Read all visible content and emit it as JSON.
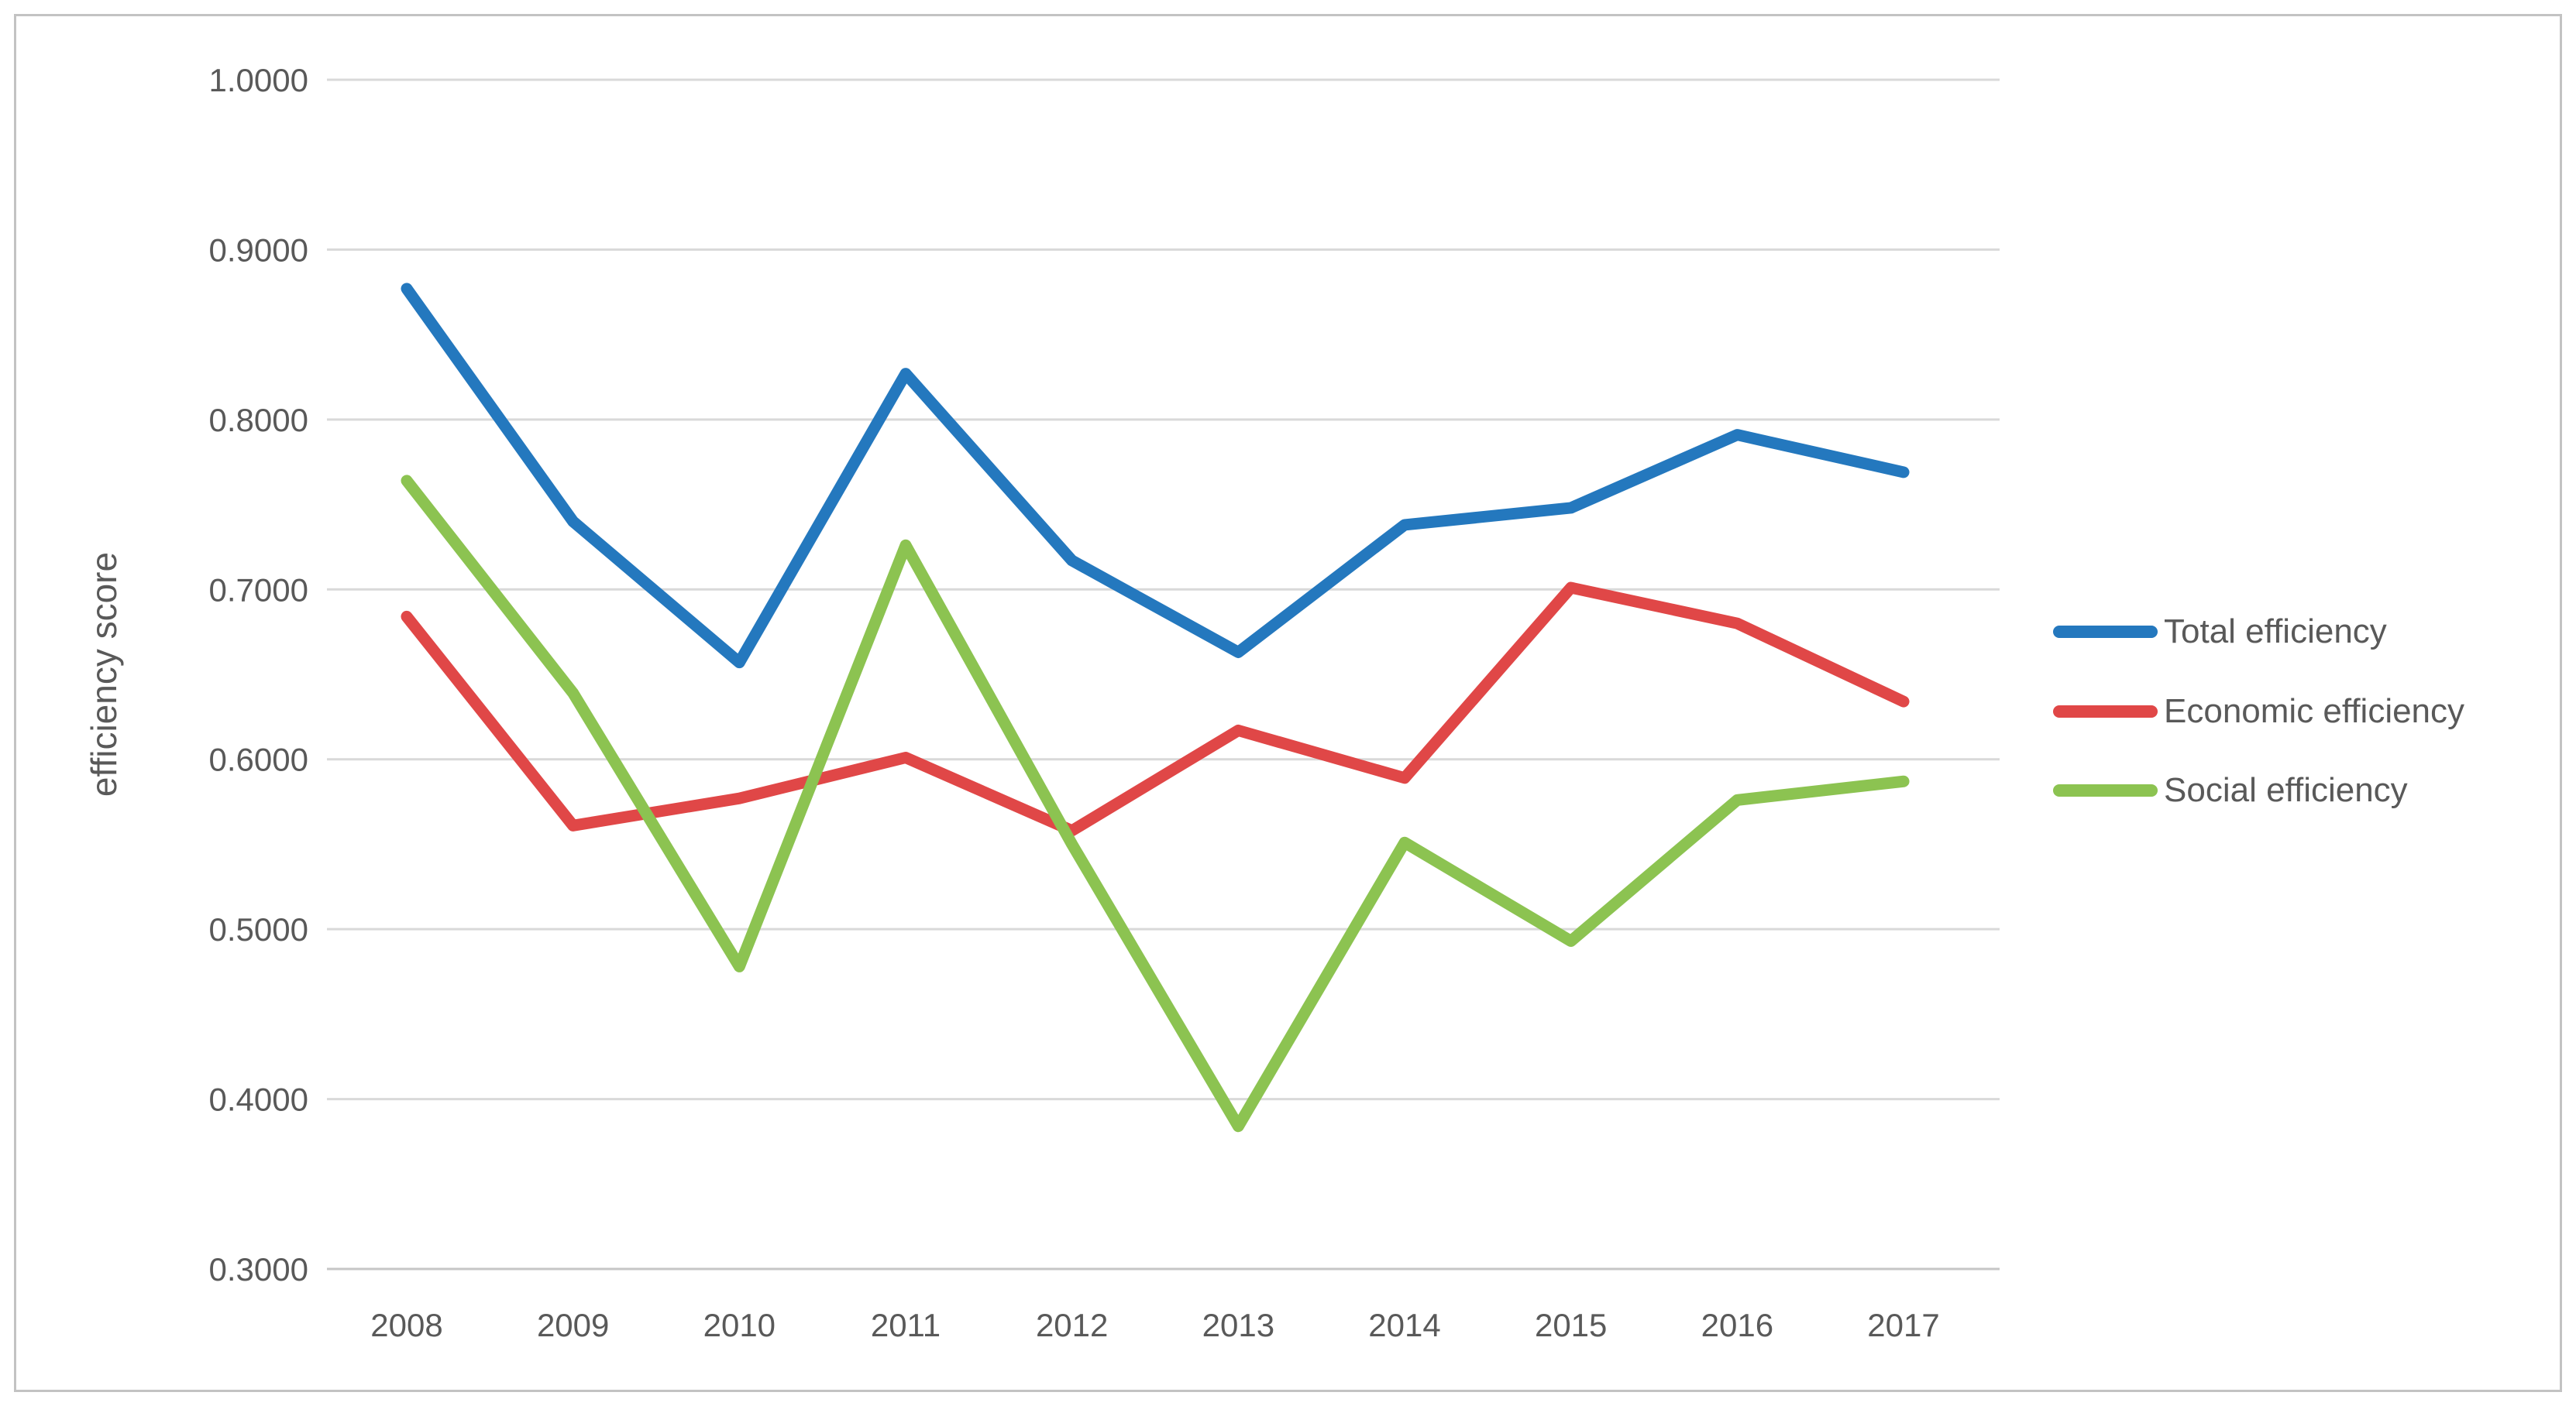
{
  "chart_data": {
    "type": "line",
    "title": "",
    "xlabel": "",
    "ylabel": "efficiency score",
    "categories": [
      "2008",
      "2009",
      "2010",
      "2011",
      "2012",
      "2013",
      "2014",
      "2015",
      "2016",
      "2017"
    ],
    "series": [
      {
        "name": "Total efficiency",
        "color": "#2478be",
        "values": [
          0.877,
          0.74,
          0.657,
          0.827,
          0.717,
          0.663,
          0.738,
          0.748,
          0.791,
          0.769
        ]
      },
      {
        "name": "Economic efficiency",
        "color": "#e04747",
        "values": [
          0.684,
          0.561,
          0.577,
          0.601,
          0.558,
          0.617,
          0.589,
          0.701,
          0.68,
          0.634
        ]
      },
      {
        "name": "Social efficiency",
        "color": "#8cc351",
        "values": [
          0.764,
          0.639,
          0.478,
          0.726,
          0.55,
          0.384,
          0.551,
          0.493,
          0.576,
          0.587
        ]
      }
    ],
    "ylim": [
      0.3,
      1.0
    ],
    "y_step": 0.1,
    "y_tick_labels": [
      "0.3000",
      "0.4000",
      "0.5000",
      "0.6000",
      "0.7000",
      "0.8000",
      "0.9000",
      "1.0000"
    ],
    "grid": true,
    "gridline_color": "#d9d9d9",
    "axis_line_color": "#c6c6c6",
    "text_color": "#595959",
    "legend_position": "right",
    "legend": [
      "Total efficiency",
      "Economic efficiency",
      "Social efficiency"
    ]
  }
}
